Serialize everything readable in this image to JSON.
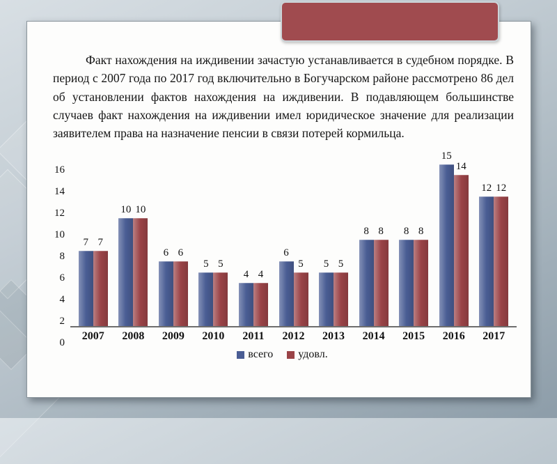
{
  "slide": {
    "paragraph": "Факт нахождения на иждивении зачастую устанавливается в судебном порядке. В период с 2007 года по 2017 год включительно в Богучарском районе рассмотрено 86 дел об установлении фактов нахождения на иждивении. В подавляющем большинстве случаев факт нахождения на иждивении имел юридическое значение для реализации заявителем права на назначение пенсии в связи потерей кормильца."
  },
  "colors": {
    "ribbon_accent": "#a04b4f",
    "series_total": "#4a5d94",
    "series_satisfied": "#9a4347",
    "slide_background": "#fdfdfc",
    "page_background": "#b4c0c8"
  },
  "chart_data": {
    "type": "bar",
    "title": "",
    "xlabel": "",
    "ylabel": "",
    "categories": [
      "2007",
      "2008",
      "2009",
      "2010",
      "2011",
      "2012",
      "2013",
      "2014",
      "2015",
      "2016",
      "2017"
    ],
    "series": [
      {
        "name": "всего",
        "color": "#4a5d94",
        "values": [
          7,
          10,
          6,
          5,
          4,
          6,
          5,
          8,
          8,
          15,
          12
        ]
      },
      {
        "name": "удовл.",
        "color": "#9a4347",
        "values": [
          7,
          10,
          6,
          5,
          4,
          5,
          5,
          8,
          8,
          14,
          12
        ]
      }
    ],
    "ylim": [
      0,
      16
    ],
    "ytick_step": 2,
    "grid": false,
    "legend_position": "bottom",
    "data_labels": true
  }
}
